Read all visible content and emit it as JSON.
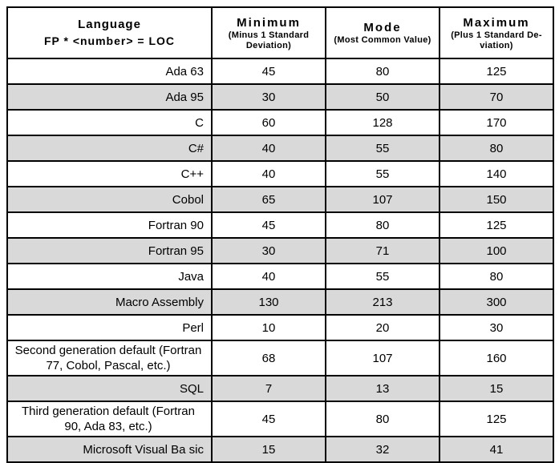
{
  "chart_data": {
    "type": "table",
    "title": "Language FP * <number> = LOC conversion table",
    "columns": [
      "Language FP * <number> = LOC",
      "Minimum (Minus 1 Standard Deviation)",
      "Mode (Most Common Value)",
      "Maximum (Plus 1 Standard Deviation)"
    ],
    "rows": [
      [
        "Ada 63",
        45,
        80,
        125
      ],
      [
        "Ada 95",
        30,
        50,
        70
      ],
      [
        "C",
        60,
        128,
        170
      ],
      [
        "C#",
        40,
        55,
        80
      ],
      [
        "C++",
        40,
        55,
        140
      ],
      [
        "Cobol",
        65,
        107,
        150
      ],
      [
        "Fortran 90",
        45,
        80,
        125
      ],
      [
        "Fortran 95",
        30,
        71,
        100
      ],
      [
        "Java",
        40,
        55,
        80
      ],
      [
        "Macro Assembly",
        130,
        213,
        300
      ],
      [
        "Perl",
        10,
        20,
        30
      ],
      [
        "Second generation default (Fortran 77, Cobol, Pascal, etc.)",
        68,
        107,
        160
      ],
      [
        "SQL",
        7,
        13,
        15
      ],
      [
        "Third generation default (Fortran 90, Ada 83, etc.)",
        45,
        80,
        125
      ],
      [
        "Microsoft Visual Ba sic",
        15,
        32,
        41
      ]
    ]
  },
  "table": {
    "header": {
      "language_title": "Language",
      "language_subtitle": "FP * <number> = LOC",
      "columns": [
        {
          "title": "Minimum",
          "subtitle": "(Minus 1 Standard Deviation)"
        },
        {
          "title": "Mode",
          "subtitle": "(Most Common Value)"
        },
        {
          "title": "Maximum",
          "subtitle": "(Plus 1 Standard De-viation)"
        }
      ]
    },
    "rows": [
      {
        "language": "Ada 63",
        "min": "45",
        "mode": "80",
        "max": "125",
        "shaded": false,
        "center": false
      },
      {
        "language": "Ada 95",
        "min": "30",
        "mode": "50",
        "max": "70",
        "shaded": true,
        "center": false
      },
      {
        "language": "C",
        "min": "60",
        "mode": "128",
        "max": "170",
        "shaded": false,
        "center": false
      },
      {
        "language": "C#",
        "min": "40",
        "mode": "55",
        "max": "80",
        "shaded": true,
        "center": false
      },
      {
        "language": "C++",
        "min": "40",
        "mode": "55",
        "max": "140",
        "shaded": false,
        "center": false
      },
      {
        "language": "Cobol",
        "min": "65",
        "mode": "107",
        "max": "150",
        "shaded": true,
        "center": false
      },
      {
        "language": "Fortran 90",
        "min": "45",
        "mode": "80",
        "max": "125",
        "shaded": false,
        "center": false
      },
      {
        "language": "Fortran 95",
        "min": "30",
        "mode": "71",
        "max": "100",
        "shaded": true,
        "center": false
      },
      {
        "language": "Java",
        "min": "40",
        "mode": "55",
        "max": "80",
        "shaded": false,
        "center": false
      },
      {
        "language": "Macro Assembly",
        "min": "130",
        "mode": "213",
        "max": "300",
        "shaded": true,
        "center": false
      },
      {
        "language": "Perl",
        "min": "10",
        "mode": "20",
        "max": "30",
        "shaded": false,
        "center": false
      },
      {
        "language": "Second generation default (Fortran 77, Cobol, Pascal, etc.)",
        "min": "68",
        "mode": "107",
        "max": "160",
        "shaded": false,
        "center": true
      },
      {
        "language": "SQL",
        "min": "7",
        "mode": "13",
        "max": "15",
        "shaded": true,
        "center": false
      },
      {
        "language": "Third generation default (Fortran 90, Ada 83, etc.)",
        "min": "45",
        "mode": "80",
        "max": "125",
        "shaded": false,
        "center": true
      },
      {
        "language": "Microsoft Visual Ba sic",
        "min": "15",
        "mode": "32",
        "max": "41",
        "shaded": true,
        "center": false
      }
    ]
  }
}
